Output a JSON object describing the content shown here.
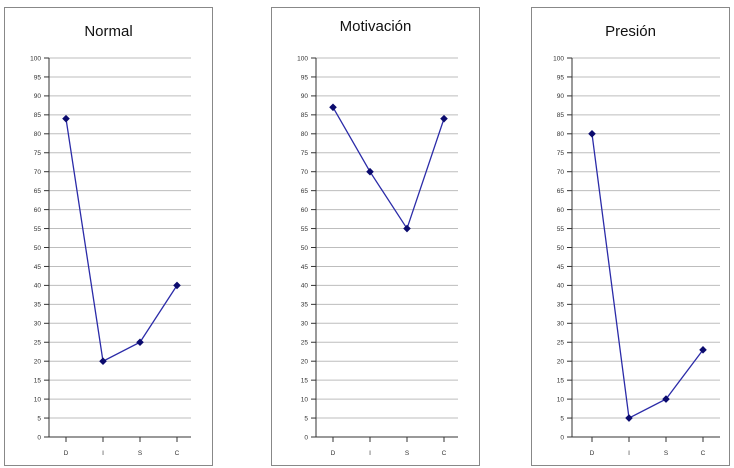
{
  "colors": {
    "line": "#2b2ba8",
    "marker": "#0b0b6e",
    "grid": "#bdbdbd",
    "axis": "#333333"
  },
  "chart_data": [
    {
      "type": "line",
      "title": "Normal",
      "categories": [
        "D",
        "I",
        "S",
        "C"
      ],
      "values": [
        84,
        20,
        25,
        40
      ],
      "yticks": [
        0,
        5,
        10,
        15,
        20,
        25,
        30,
        35,
        40,
        45,
        50,
        55,
        60,
        65,
        70,
        75,
        80,
        85,
        90,
        95,
        100
      ],
      "ylim": [
        0,
        100
      ],
      "grid": true,
      "xlabel": "",
      "ylabel": ""
    },
    {
      "type": "line",
      "title": "Motivación",
      "categories": [
        "D",
        "I",
        "S",
        "C"
      ],
      "values": [
        87,
        70,
        55,
        84
      ],
      "yticks": [
        0,
        5,
        10,
        15,
        20,
        25,
        30,
        35,
        40,
        45,
        50,
        55,
        60,
        65,
        70,
        75,
        80,
        85,
        90,
        95,
        100
      ],
      "ylim": [
        0,
        100
      ],
      "grid": true,
      "xlabel": "",
      "ylabel": ""
    },
    {
      "type": "line",
      "title": "Presión",
      "categories": [
        "D",
        "I",
        "S",
        "C"
      ],
      "values": [
        80,
        5,
        10,
        23
      ],
      "yticks": [
        0,
        5,
        10,
        15,
        20,
        25,
        30,
        35,
        40,
        45,
        50,
        55,
        60,
        65,
        70,
        75,
        80,
        85,
        90,
        95,
        100
      ],
      "ylim": [
        0,
        100
      ],
      "grid": true,
      "xlabel": "",
      "ylabel": ""
    }
  ]
}
